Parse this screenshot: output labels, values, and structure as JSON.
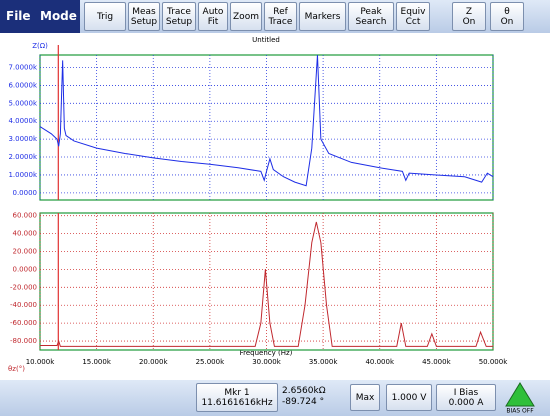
{
  "menu": [
    "File",
    "Mode"
  ],
  "toolbar": [
    [
      "Trig"
    ],
    [
      "Meas",
      "Setup"
    ],
    [
      "Trace",
      "Setup"
    ],
    [
      "Auto",
      "Fit"
    ],
    [
      "Zoom"
    ],
    [
      "Ref",
      "Trace"
    ],
    [
      "Markers"
    ],
    [
      "Peak",
      "Search"
    ],
    [
      "Equiv",
      "Cct"
    ],
    [
      "Z",
      "On"
    ],
    [
      "θ",
      "On"
    ]
  ],
  "title": "Untitled",
  "x_label": "Frequency (Hz)",
  "marker": {
    "x": 11616.1616,
    "color": "#e03030"
  },
  "chart_data": [
    {
      "type": "line",
      "y_label": "Z(Ω)",
      "color": "#1e2ee6",
      "grid_color": "#2b3de0",
      "grid": true,
      "x": [
        10000,
        10500,
        11000,
        11500,
        11650,
        11800,
        12000,
        12150,
        12300,
        13000,
        15000,
        17500,
        20000,
        22500,
        25000,
        27500,
        29500,
        29800,
        30000,
        30300,
        30600,
        31500,
        32500,
        33500,
        34000,
        34500,
        34800,
        35500,
        37500,
        40000,
        42000,
        42300,
        42600,
        45000,
        47500,
        49000,
        49500,
        50000
      ],
      "series": [
        {
          "name": "Z",
          "values": [
            3700,
            3500,
            3300,
            3000,
            2600,
            3300,
            7400,
            3600,
            3200,
            2900,
            2500,
            2200,
            1950,
            1750,
            1600,
            1400,
            1200,
            700,
            1200,
            1900,
            1300,
            900,
            600,
            400,
            2500,
            7700,
            3000,
            2200,
            1700,
            1400,
            1200,
            700,
            1100,
            1000,
            900,
            600,
            1100,
            900
          ]
        }
      ],
      "xlim": [
        10000,
        50000
      ],
      "xticks": [
        10000,
        15000,
        20000,
        25000,
        30000,
        35000,
        40000,
        45000,
        50000
      ],
      "ylim": [
        -400,
        7700
      ],
      "yticks": [
        {
          "value": 0,
          "label": "0.0000"
        },
        {
          "value": 1000,
          "label": "1.0000k"
        },
        {
          "value": 2000,
          "label": "2.0000k"
        },
        {
          "value": 3000,
          "label": "3.0000k"
        },
        {
          "value": 4000,
          "label": "4.0000k"
        },
        {
          "value": 5000,
          "label": "5.0000k"
        },
        {
          "value": 6000,
          "label": "6.0000k"
        },
        {
          "value": 7000,
          "label": "7.0000k"
        }
      ]
    },
    {
      "type": "line",
      "y_label": "θz(°)",
      "color": "#c0282e",
      "grid_color": "#d03030",
      "grid": true,
      "x": [
        10000,
        11500,
        11650,
        11800,
        25000,
        29000,
        29500,
        29900,
        30300,
        30700,
        32800,
        33400,
        34000,
        34400,
        34800,
        35300,
        35800,
        41500,
        41900,
        42300,
        44200,
        44600,
        45000,
        48500,
        48900,
        49400,
        50000
      ],
      "series": [
        {
          "name": "θz",
          "values": [
            -85,
            -85,
            -80,
            -86,
            -86,
            -86,
            -60,
            0,
            -60,
            -86,
            -86,
            -40,
            30,
            53,
            30,
            -40,
            -86,
            -86,
            -60,
            -86,
            -86,
            -72,
            -86,
            -86,
            -70,
            -86,
            -86
          ]
        }
      ],
      "xlim": [
        10000,
        50000
      ],
      "xticks": [
        {
          "value": 10000,
          "label": "10.000k"
        },
        {
          "value": 15000,
          "label": "15.000k"
        },
        {
          "value": 20000,
          "label": "20.000k"
        },
        {
          "value": 25000,
          "label": "25.000k"
        },
        {
          "value": 30000,
          "label": "30.000k"
        },
        {
          "value": 35000,
          "label": "35.000k"
        },
        {
          "value": 40000,
          "label": "40.000k"
        },
        {
          "value": 45000,
          "label": "45.000k"
        },
        {
          "value": 50000,
          "label": "50.000k"
        }
      ],
      "ylim": [
        -90,
        63
      ],
      "yticks": [
        {
          "value": -80,
          "label": "-80.000"
        },
        {
          "value": -60,
          "label": "-60.000"
        },
        {
          "value": -40,
          "label": "-40.000"
        },
        {
          "value": -20,
          "label": "-20.000"
        },
        {
          "value": 0,
          "label": "0.0000"
        },
        {
          "value": 20,
          "label": "20.000"
        },
        {
          "value": 40,
          "label": "40.000"
        },
        {
          "value": 60,
          "label": "60.000"
        }
      ]
    }
  ],
  "status": {
    "marker_button": [
      "Mkr 1",
      "11.6161616kHz"
    ],
    "readout": [
      "2.6560kΩ",
      "-89.724 °"
    ],
    "max": "Max",
    "voltage": "1.000 V",
    "bias": [
      "I Bias",
      "0.000 A"
    ],
    "bias_state": "BIAS OFF"
  }
}
